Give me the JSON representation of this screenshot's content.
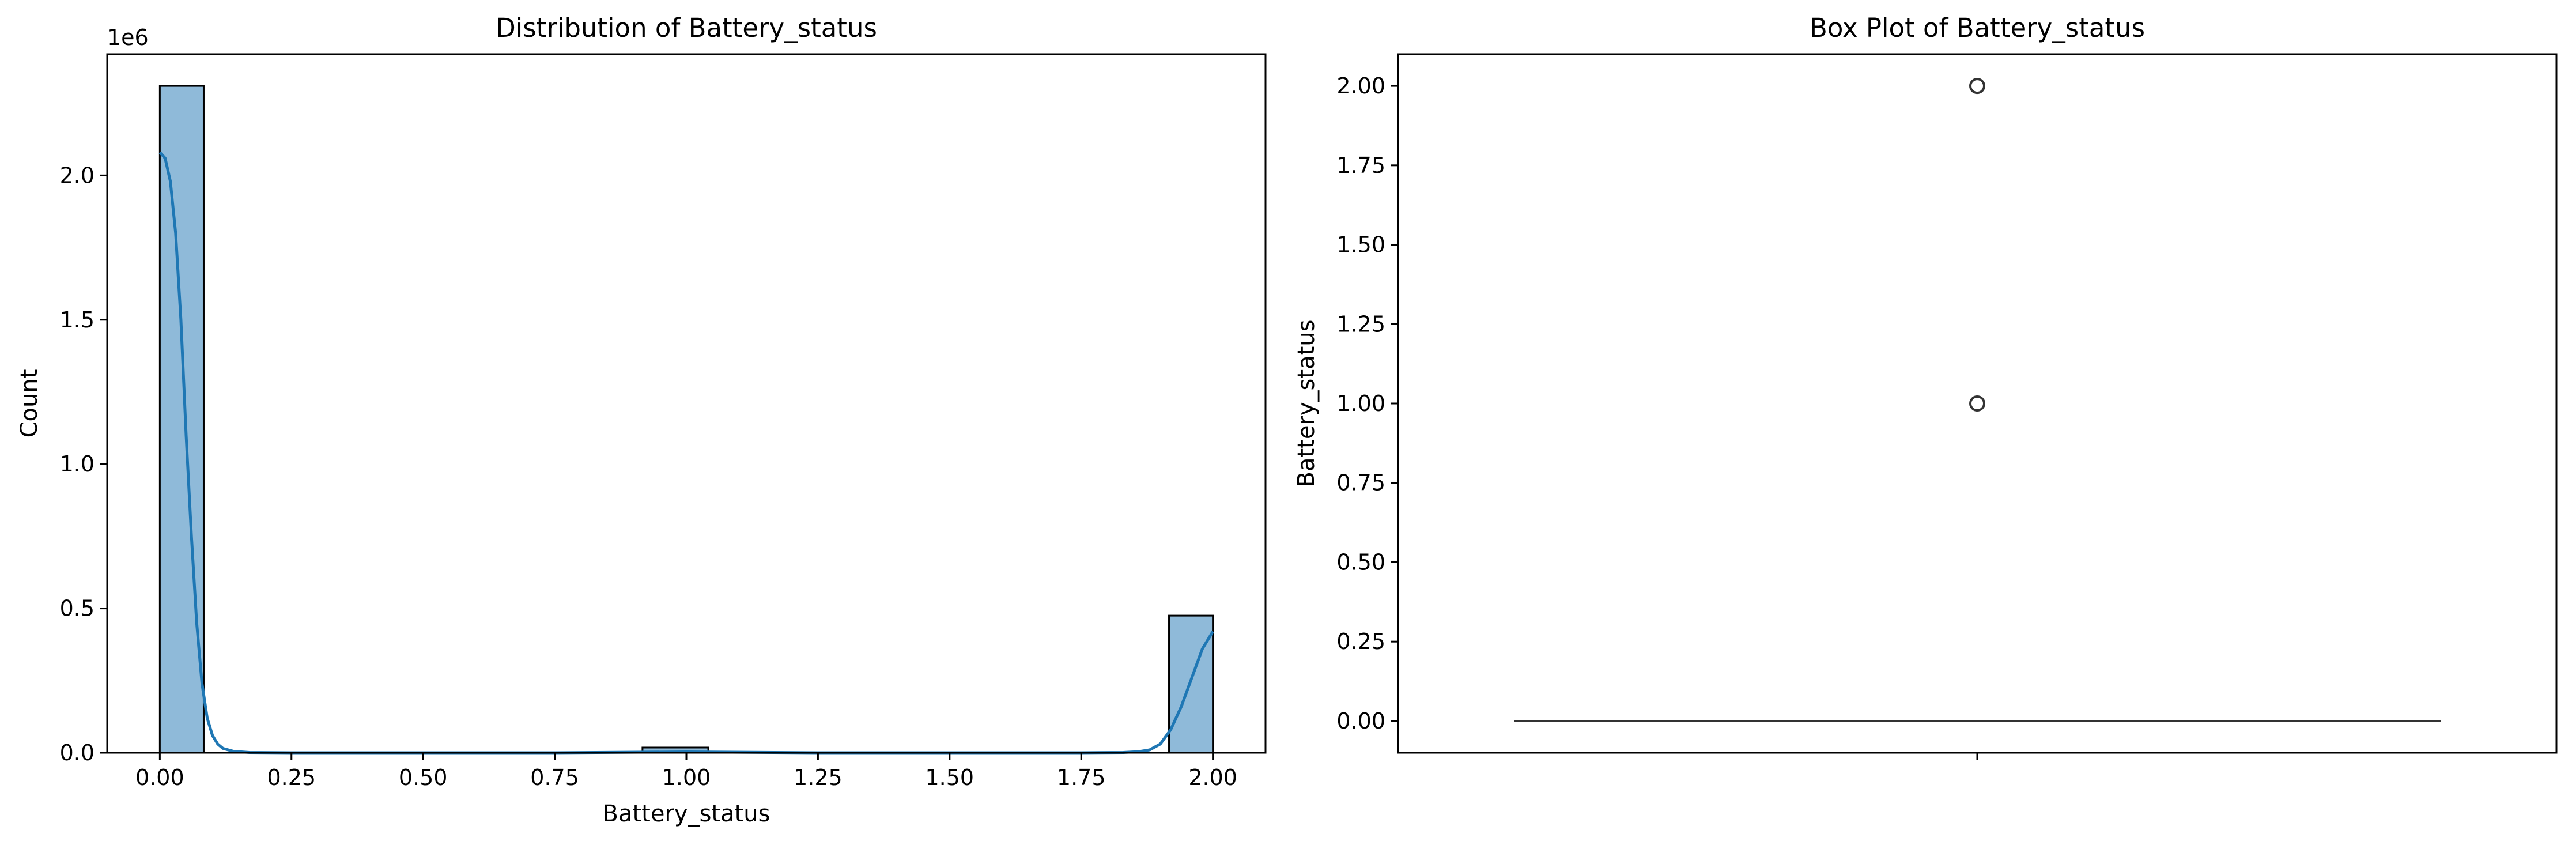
{
  "chart_data": [
    {
      "type": "bar",
      "subtype": "histogram_with_kde",
      "title": "Distribution of Battery_status",
      "xlabel": "Battery_status",
      "ylabel": "Count",
      "y_offset_label": "1e6",
      "xlim": [
        -0.1,
        2.1
      ],
      "ylim": [
        0,
        2.42
      ],
      "grid": false,
      "bar_color": "#8fbad9",
      "line_color": "#1f77b4",
      "bins": [
        {
          "x0": 0.0,
          "x1": 0.0833,
          "count": 2.31
        },
        {
          "x0": 0.9167,
          "x1": 1.0417,
          "count": 0.018
        },
        {
          "x0": 1.9167,
          "x1": 2.0,
          "count": 0.475
        }
      ],
      "kde": {
        "x": [
          0.0,
          0.01,
          0.02,
          0.03,
          0.04,
          0.05,
          0.06,
          0.07,
          0.08,
          0.09,
          0.1,
          0.11,
          0.12,
          0.14,
          0.17,
          0.25,
          0.5,
          0.75,
          1.0,
          1.25,
          1.5,
          1.75,
          1.83,
          1.86,
          1.88,
          1.9,
          1.92,
          1.94,
          1.96,
          1.98,
          2.0
        ],
        "y": [
          2.08,
          2.06,
          1.98,
          1.8,
          1.5,
          1.1,
          0.75,
          0.45,
          0.24,
          0.12,
          0.06,
          0.03,
          0.015,
          0.005,
          0.001,
          0.0,
          0.0,
          0.0,
          0.003,
          0.0,
          0.0,
          0.0,
          0.001,
          0.004,
          0.01,
          0.03,
          0.08,
          0.16,
          0.26,
          0.36,
          0.42
        ]
      },
      "xticks": [
        "0.00",
        "0.25",
        "0.50",
        "0.75",
        "1.00",
        "1.25",
        "1.50",
        "1.75",
        "2.00"
      ],
      "yticks": [
        "0.0",
        "0.5",
        "1.0",
        "1.5",
        "2.0"
      ]
    },
    {
      "type": "scatter",
      "subtype": "box_plot",
      "title": "Box Plot of Battery_status",
      "xlabel": "",
      "ylabel": "Battery_status",
      "ylim": [
        -0.1,
        2.1
      ],
      "grid": false,
      "median": 0.0,
      "q1": 0.0,
      "q3": 0.0,
      "outliers": [
        1.0,
        2.0
      ],
      "yticks": [
        "0.00",
        "0.25",
        "0.50",
        "0.75",
        "1.00",
        "1.25",
        "1.50",
        "1.75",
        "2.00"
      ]
    }
  ]
}
